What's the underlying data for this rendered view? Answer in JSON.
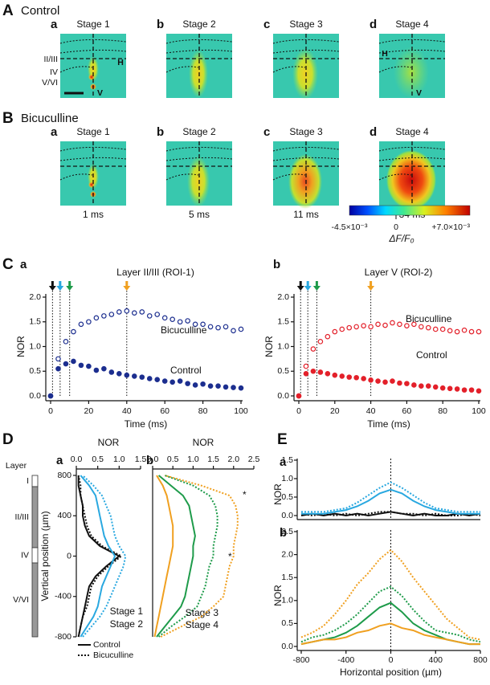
{
  "panel_A": {
    "letter": "A",
    "title": "Control",
    "stages": [
      {
        "letter": "a",
        "label": "Stage 1"
      },
      {
        "letter": "b",
        "label": "Stage 2"
      },
      {
        "letter": "c",
        "label": "Stage 3"
      },
      {
        "letter": "d",
        "label": "Stage 4"
      }
    ],
    "layers": [
      "II/III",
      "IV",
      "V/VI"
    ],
    "axis_marks": [
      "H",
      "V"
    ]
  },
  "panel_B": {
    "letter": "B",
    "title": "Bicuculline",
    "stages": [
      {
        "letter": "a",
        "label": "Stage 1"
      },
      {
        "letter": "b",
        "label": "Stage 2"
      },
      {
        "letter": "c",
        "label": "Stage 3"
      },
      {
        "letter": "d",
        "label": "Stage 4"
      }
    ],
    "times": [
      "1 ms",
      "5 ms",
      "11 ms",
      "34 ms"
    ]
  },
  "colorbar": {
    "min_label": "-4.5×10⁻³",
    "mid_label": "0",
    "max_label": "+7.0×10⁻³",
    "label": "ΔF/F₀"
  },
  "panel_C_letter": "C",
  "panel_D_letter": "D",
  "panel_E_letter": "E",
  "layer_bar": {
    "title": "Layer",
    "layers": [
      "I",
      "II/III",
      "IV",
      "V/VI"
    ]
  },
  "chart_data": [
    {
      "type": "scatter",
      "panel": "a",
      "title": "Layer II/III (ROI-1)",
      "x_label": "Time (ms)",
      "y_label": "NOR",
      "x": [
        0,
        4,
        8,
        12,
        16,
        20,
        24,
        28,
        32,
        36,
        40,
        44,
        48,
        52,
        56,
        60,
        64,
        68,
        72,
        76,
        80,
        84,
        88,
        92,
        96,
        100
      ],
      "series": [
        {
          "name": "Bicuculline",
          "color": "#1c2e8f",
          "marker": "open",
          "values": [
            0.0,
            0.75,
            1.1,
            1.3,
            1.45,
            1.5,
            1.58,
            1.62,
            1.65,
            1.7,
            1.72,
            1.68,
            1.7,
            1.62,
            1.65,
            1.58,
            1.55,
            1.5,
            1.52,
            1.45,
            1.45,
            1.4,
            1.38,
            1.4,
            1.32,
            1.35
          ]
        },
        {
          "name": "Control",
          "color": "#1c2e8f",
          "marker": "filled",
          "values": [
            0.0,
            0.55,
            0.65,
            0.7,
            0.62,
            0.6,
            0.52,
            0.55,
            0.48,
            0.45,
            0.42,
            0.4,
            0.38,
            0.35,
            0.33,
            0.3,
            0.28,
            0.3,
            0.25,
            0.22,
            0.24,
            0.2,
            0.2,
            0.18,
            0.17,
            0.16
          ]
        }
      ],
      "markers": [
        {
          "x": 1,
          "color": "#111111"
        },
        {
          "x": 5,
          "color": "#29a8e0"
        },
        {
          "x": 10,
          "color": "#1e9b4a"
        },
        {
          "x": 40,
          "color": "#f0a020"
        }
      ],
      "xlim": [
        0,
        100
      ],
      "xticks": [
        0,
        20,
        40,
        60,
        80,
        100
      ],
      "ylim": [
        0,
        2
      ],
      "yticks": [
        {
          "value": 0,
          "label": "0.0"
        },
        0.5,
        {
          "value": 1,
          "label": "1.0"
        },
        1.5,
        {
          "value": 2,
          "label": "2.0"
        }
      ]
    },
    {
      "type": "scatter",
      "panel": "b",
      "title": "Layer V (ROI-2)",
      "x_label": "Time (ms)",
      "y_label": "NOR",
      "x": [
        0,
        4,
        8,
        12,
        16,
        20,
        24,
        28,
        32,
        36,
        40,
        44,
        48,
        52,
        56,
        60,
        64,
        68,
        72,
        76,
        80,
        84,
        88,
        92,
        96,
        100
      ],
      "series": [
        {
          "name": "Bicuculline",
          "color": "#e3202a",
          "marker": "open",
          "values": [
            0.0,
            0.6,
            0.95,
            1.1,
            1.2,
            1.3,
            1.35,
            1.38,
            1.4,
            1.42,
            1.4,
            1.45,
            1.43,
            1.48,
            1.45,
            1.42,
            1.45,
            1.4,
            1.38,
            1.35,
            1.35,
            1.32,
            1.3,
            1.33,
            1.3,
            1.3
          ]
        },
        {
          "name": "Control",
          "color": "#e3202a",
          "marker": "filled",
          "values": [
            0.0,
            0.45,
            0.5,
            0.48,
            0.45,
            0.42,
            0.4,
            0.38,
            0.37,
            0.35,
            0.32,
            0.3,
            0.28,
            0.3,
            0.26,
            0.25,
            0.22,
            0.2,
            0.2,
            0.18,
            0.16,
            0.15,
            0.14,
            0.12,
            0.12,
            0.1
          ]
        }
      ],
      "markers": [
        {
          "x": 1,
          "color": "#111111"
        },
        {
          "x": 5,
          "color": "#29a8e0"
        },
        {
          "x": 10,
          "color": "#1e9b4a"
        },
        {
          "x": 40,
          "color": "#f0a020"
        }
      ],
      "xlim": [
        0,
        100
      ],
      "xticks": [
        0,
        20,
        40,
        60,
        80,
        100
      ],
      "ylim": [
        0,
        2
      ],
      "yticks": [
        {
          "value": 0,
          "label": "0.0"
        },
        0.5,
        {
          "value": 1,
          "label": "1.0"
        },
        1.5,
        {
          "value": 2,
          "label": "2.0"
        }
      ]
    },
    {
      "type": "line",
      "orientation": "vertical",
      "panel": "a",
      "x_label": "NOR",
      "y_label": "Vertical position (µm)",
      "y": [
        -800,
        -700,
        -600,
        -500,
        -400,
        -300,
        -200,
        -100,
        0,
        100,
        200,
        300,
        400,
        500,
        600,
        700,
        800
      ],
      "series": [
        {
          "name": "Stage 1",
          "color": "#111111",
          "control": [
            0.05,
            0.1,
            0.15,
            0.2,
            0.25,
            0.3,
            0.45,
            0.7,
            1.0,
            0.55,
            0.3,
            0.2,
            0.15,
            0.15,
            0.1,
            0.05,
            0.05
          ],
          "bicuculline": [
            0.05,
            0.1,
            0.15,
            0.25,
            0.3,
            0.35,
            0.5,
            0.75,
            1.05,
            0.6,
            0.35,
            0.25,
            0.2,
            0.15,
            0.1,
            0.1,
            0.05
          ]
        },
        {
          "name": "Stage 2",
          "color": "#29a8e0",
          "control": [
            0.1,
            0.25,
            0.4,
            0.5,
            0.55,
            0.6,
            0.7,
            0.8,
            0.9,
            0.75,
            0.65,
            0.6,
            0.55,
            0.5,
            0.45,
            0.3,
            0.1
          ],
          "bicuculline": [
            0.15,
            0.35,
            0.55,
            0.7,
            0.8,
            0.9,
            1.0,
            1.1,
            1.15,
            1.0,
            0.9,
            0.85,
            0.8,
            0.7,
            0.6,
            0.4,
            0.15
          ]
        }
      ],
      "line_styles": [
        "Control",
        "Bicuculline"
      ],
      "xlim": [
        0,
        1.5
      ],
      "xticks": [
        {
          "value": 0,
          "label": "0.0"
        },
        0.5,
        {
          "value": 1,
          "label": "1.0"
        },
        1.5
      ],
      "ylim": [
        -800,
        800
      ],
      "yticks": [
        800,
        400,
        0,
        -400,
        -800
      ]
    },
    {
      "type": "line",
      "orientation": "vertical",
      "panel": "b",
      "x_label": "NOR",
      "y": [
        -800,
        -700,
        -600,
        -500,
        -400,
        -300,
        -200,
        -100,
        0,
        100,
        200,
        300,
        400,
        500,
        600,
        700,
        800
      ],
      "series": [
        {
          "name": "Stage 3",
          "color": "#1e9b4a",
          "control": [
            0.1,
            0.3,
            0.5,
            0.7,
            0.8,
            0.85,
            0.9,
            0.95,
            1.0,
            1.0,
            1.05,
            1.0,
            0.95,
            0.9,
            0.75,
            0.45,
            0.15
          ],
          "bicuculline": [
            0.15,
            0.45,
            0.8,
            1.1,
            1.2,
            1.3,
            1.35,
            1.4,
            1.5,
            1.5,
            1.55,
            1.6,
            1.6,
            1.55,
            1.4,
            1.0,
            0.3
          ]
        },
        {
          "name": "Stage 4",
          "color": "#f0a020",
          "control": [
            0.05,
            0.1,
            0.15,
            0.2,
            0.25,
            0.3,
            0.35,
            0.4,
            0.45,
            0.5,
            0.5,
            0.5,
            0.45,
            0.4,
            0.35,
            0.25,
            0.1
          ],
          "bicuculline": [
            0.2,
            0.7,
            1.2,
            1.5,
            1.75,
            1.8,
            1.85,
            1.9,
            2.0,
            2.0,
            2.05,
            2.1,
            2.1,
            2.05,
            1.9,
            1.2,
            0.3
          ]
        }
      ],
      "annotations": [
        "*",
        "*"
      ],
      "xlim": [
        0,
        2.5
      ],
      "xticks": [
        {
          "value": 0,
          "label": "0.0"
        },
        0.5,
        {
          "value": 1,
          "label": "1.0"
        },
        1.5,
        {
          "value": 2,
          "label": "2.0"
        },
        2.5
      ],
      "ylim": [
        -800,
        800
      ]
    },
    {
      "type": "line",
      "panel": "a",
      "y_label": "NOR",
      "x": [
        -800,
        -700,
        -600,
        -500,
        -400,
        -300,
        -200,
        -100,
        0,
        100,
        200,
        300,
        400,
        500,
        600,
        700,
        800
      ],
      "series": [
        {
          "color": "#111111",
          "control": [
            0,
            0.05,
            0,
            0.05,
            0,
            0.05,
            0,
            0.05,
            0.1,
            0.05,
            0,
            0.05,
            0,
            0,
            0.05,
            0,
            0.05
          ],
          "bicuculline": [
            0.05,
            0,
            0.05,
            0,
            0.05,
            0,
            0.05,
            0.1,
            0.1,
            0.05,
            0.05,
            0,
            0.05,
            0,
            0,
            0.05,
            0
          ]
        },
        {
          "color": "#29a8e0",
          "control": [
            0.05,
            0.05,
            0.05,
            0.1,
            0.15,
            0.25,
            0.4,
            0.6,
            0.7,
            0.6,
            0.4,
            0.25,
            0.15,
            0.1,
            0.05,
            0.05,
            0.05
          ],
          "bicuculline": [
            0.1,
            0.1,
            0.1,
            0.15,
            0.2,
            0.35,
            0.55,
            0.75,
            0.9,
            0.75,
            0.55,
            0.35,
            0.2,
            0.15,
            0.1,
            0.1,
            0.1
          ]
        }
      ],
      "ref_x": 0,
      "xlim": [
        -800,
        800
      ],
      "ylim": [
        0,
        1.5
      ],
      "yticks": [
        {
          "value": 0,
          "label": "0.0"
        },
        0.5,
        {
          "value": 1,
          "label": "1.0"
        },
        1.5
      ]
    },
    {
      "type": "line",
      "panel": "b",
      "y_label": "NOR",
      "x_label": "Horizontal position (µm)",
      "x": [
        -800,
        -700,
        -600,
        -500,
        -400,
        -300,
        -200,
        -100,
        0,
        100,
        200,
        300,
        400,
        500,
        600,
        700,
        800
      ],
      "series": [
        {
          "color": "#1e9b4a",
          "control": [
            0.05,
            0.1,
            0.15,
            0.2,
            0.3,
            0.45,
            0.65,
            0.85,
            0.95,
            0.75,
            0.5,
            0.35,
            0.25,
            0.15,
            0.1,
            0.05,
            0.05
          ],
          "bicuculline": [
            0.1,
            0.2,
            0.25,
            0.35,
            0.5,
            0.7,
            0.95,
            1.2,
            1.3,
            1.1,
            0.8,
            0.55,
            0.35,
            0.3,
            0.25,
            0.15,
            0.1
          ]
        },
        {
          "color": "#f0a020",
          "control": [
            0.05,
            0.1,
            0.15,
            0.15,
            0.2,
            0.3,
            0.35,
            0.45,
            0.5,
            0.4,
            0.35,
            0.25,
            0.2,
            0.15,
            0.1,
            0.05,
            0.05
          ],
          "bicuculline": [
            0.2,
            0.3,
            0.45,
            0.7,
            1.0,
            1.35,
            1.6,
            1.9,
            2.1,
            1.85,
            1.5,
            1.2,
            0.9,
            0.6,
            0.4,
            0.2,
            0.15
          ]
        }
      ],
      "ref_x": 0,
      "xlim": [
        -800,
        800
      ],
      "xticks": [
        -800,
        -400,
        0,
        400,
        800
      ],
      "ylim": [
        0,
        2.5
      ],
      "yticks": [
        {
          "value": 0,
          "label": "0.0"
        },
        0.5,
        {
          "value": 1,
          "label": "1.0"
        },
        1.5,
        {
          "value": 2,
          "label": "2.0"
        },
        2.5
      ]
    }
  ]
}
